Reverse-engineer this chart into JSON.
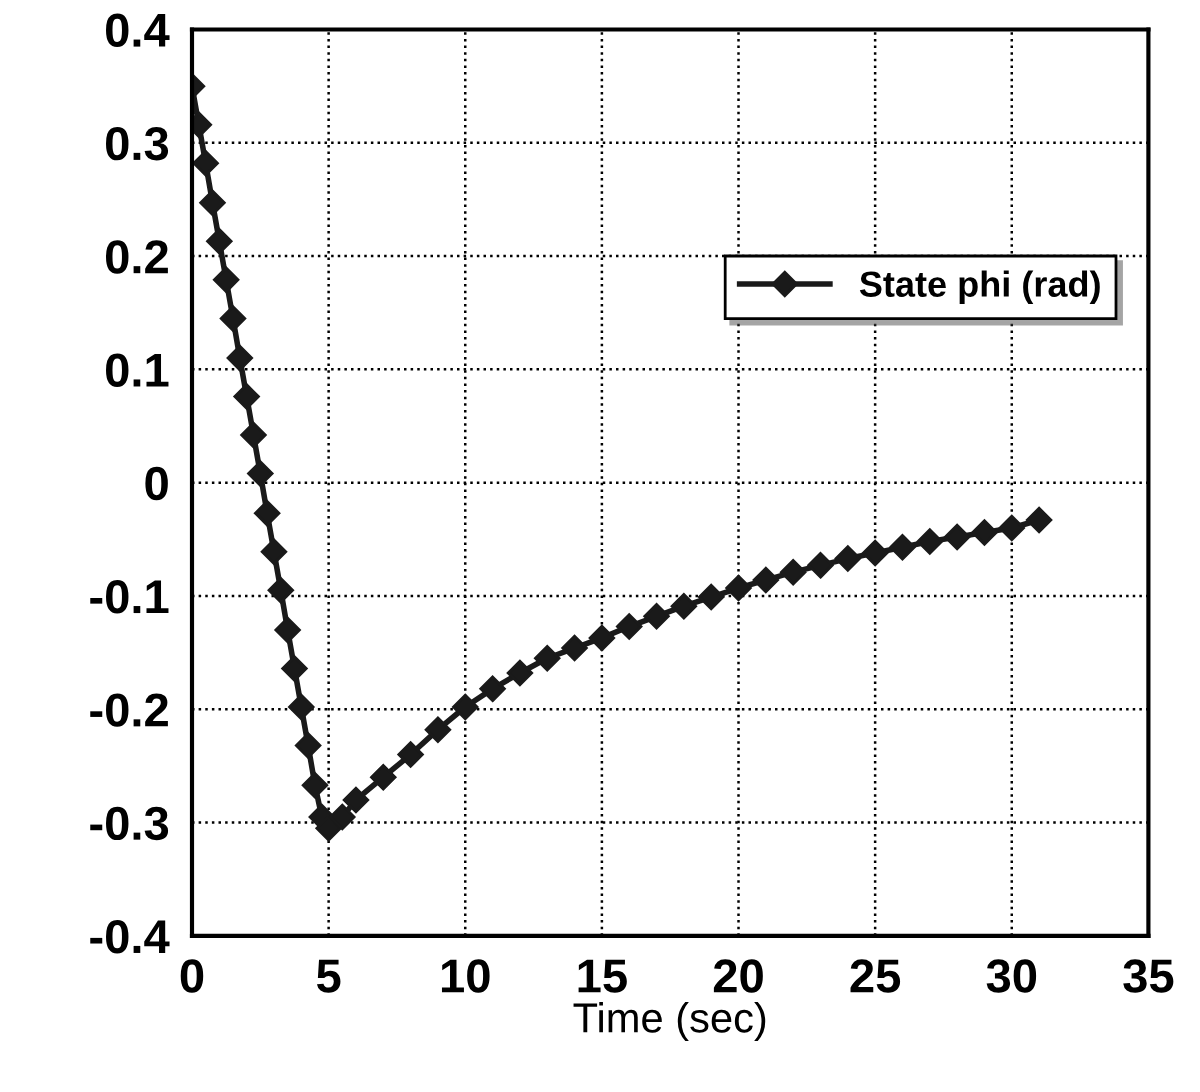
{
  "chart_data": {
    "type": "line",
    "xlabel": "Time (sec)",
    "x": [
      0,
      0.25,
      0.5,
      0.75,
      1,
      1.25,
      1.5,
      1.75,
      2,
      2.25,
      2.5,
      2.75,
      3,
      3.25,
      3.5,
      3.75,
      4,
      4.25,
      4.5,
      4.75,
      5,
      5.5,
      6,
      7,
      8,
      9,
      10,
      11,
      12,
      13,
      14,
      15,
      16,
      17,
      18,
      19,
      20,
      21,
      22,
      23,
      24,
      25,
      26,
      27,
      28,
      29,
      30,
      31
    ],
    "series": [
      {
        "name": "State phi (rad)",
        "color": "#1a1a1a",
        "values": [
          0.35,
          0.316,
          0.282,
          0.247,
          0.213,
          0.179,
          0.145,
          0.11,
          0.076,
          0.042,
          0.008,
          -0.027,
          -0.061,
          -0.095,
          -0.13,
          -0.164,
          -0.198,
          -0.232,
          -0.267,
          -0.295,
          -0.305,
          -0.295,
          -0.28,
          -0.26,
          -0.24,
          -0.218,
          -0.198,
          -0.182,
          -0.168,
          -0.155,
          -0.146,
          -0.137,
          -0.127,
          -0.118,
          -0.109,
          -0.101,
          -0.093,
          -0.086,
          -0.079,
          -0.073,
          -0.067,
          -0.062,
          -0.057,
          -0.052,
          -0.048,
          -0.044,
          -0.04,
          -0.033
        ]
      }
    ],
    "xlim": [
      0,
      35
    ],
    "xticks": [
      0,
      5,
      10,
      15,
      20,
      25,
      30,
      35
    ],
    "ylim": [
      -0.4,
      0.4
    ],
    "yticks": [
      {
        "value": -0.4,
        "label": "-0.4"
      },
      {
        "value": -0.3,
        "label": "-0.3"
      },
      {
        "value": -0.2,
        "label": "-0.2"
      },
      {
        "value": -0.1,
        "label": "-0.1"
      },
      0,
      0.1,
      0.2,
      0.3,
      0.4
    ],
    "grid": true,
    "legend": "top right",
    "marker": "diamond",
    "line_style": "solid"
  }
}
